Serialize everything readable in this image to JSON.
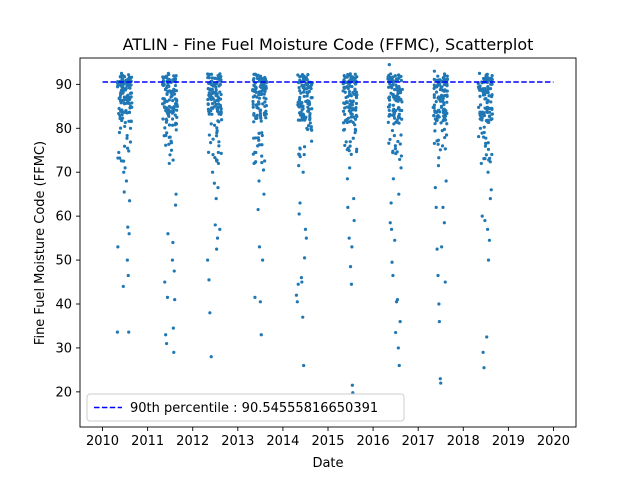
{
  "chart_data": {
    "type": "scatter",
    "title": "ATLIN - Fine Fuel Moisture Code (FFMC), Scatterplot",
    "xlabel": "Date",
    "ylabel": "Fine Fuel Moisture Code (FFMC)",
    "xlim": [
      2009.5,
      2020.5
    ],
    "ylim": [
      12,
      96
    ],
    "x_ticks": [
      "2010",
      "2011",
      "2012",
      "2013",
      "2014",
      "2015",
      "2016",
      "2017",
      "2018",
      "2019",
      "2020"
    ],
    "y_ticks": [
      "20",
      "30",
      "40",
      "50",
      "60",
      "70",
      "80",
      "90"
    ],
    "grid": false,
    "legend_position": "lower-left",
    "point_color": "#1f77b4",
    "reference_line": {
      "label": "90th percentile : 90.54555816650391",
      "value": 90.54555816650391,
      "color": "#0000ff",
      "style": "dashed"
    },
    "series": [
      {
        "seasons": [
          {
            "year": 2010,
            "points": [
              [
                2010.33,
                33.6
              ],
              [
                2010.34,
                53.0
              ],
              [
                2010.36,
                74.5
              ],
              [
                2010.38,
                73.2
              ],
              [
                2010.42,
                92.5
              ],
              [
                2010.45,
                88.0
              ],
              [
                2010.46,
                44.0
              ],
              [
                2010.48,
                65.5
              ],
              [
                2010.5,
                71.0
              ],
              [
                2010.52,
                89.0
              ],
              [
                2010.55,
                50.0
              ],
              [
                2010.56,
                57.5
              ],
              [
                2010.58,
                33.6
              ],
              [
                2010.6,
                63.5
              ],
              [
                2010.62,
                80.0
              ],
              [
                2010.47,
                70.0
              ],
              [
                2010.53,
                68.0
              ],
              [
                2010.4,
                84.0
              ],
              [
                2010.57,
                46.5
              ],
              [
                2010.59,
                56.0
              ]
            ]
          },
          {
            "year": 2011,
            "points": [
              [
                2011.38,
                45.0
              ],
              [
                2011.4,
                33.0
              ],
              [
                2011.42,
                31.0
              ],
              [
                2011.44,
                41.5
              ],
              [
                2011.46,
                92.5
              ],
              [
                2011.52,
                88.0
              ],
              [
                2011.55,
                50.0
              ],
              [
                2011.57,
                34.5
              ],
              [
                2011.58,
                29.0
              ],
              [
                2011.6,
                41.0
              ],
              [
                2011.62,
                62.5
              ],
              [
                2011.64,
                81.0
              ],
              [
                2011.5,
                78.0
              ],
              [
                2011.48,
                72.0
              ],
              [
                2011.56,
                54.0
              ],
              [
                2011.59,
                47.5
              ],
              [
                2011.63,
                65.0
              ],
              [
                2011.45,
                56.0
              ],
              [
                2011.53,
                75.0
              ],
              [
                2011.66,
                85.0
              ]
            ]
          },
          {
            "year": 2012,
            "points": [
              [
                2012.33,
                50.0
              ],
              [
                2012.36,
                45.5
              ],
              [
                2012.38,
                38.0
              ],
              [
                2012.41,
                28.0
              ],
              [
                2012.44,
                70.0
              ],
              [
                2012.47,
                88.0
              ],
              [
                2012.5,
                58.0
              ],
              [
                2012.53,
                52.5
              ],
              [
                2012.56,
                66.5
              ],
              [
                2012.58,
                76.0
              ],
              [
                2012.6,
                57.0
              ],
              [
                2012.62,
                91.0
              ],
              [
                2012.45,
                74.0
              ],
              [
                2012.52,
                64.0
              ],
              [
                2012.55,
                55.0
              ],
              [
                2012.4,
                84.0
              ],
              [
                2012.57,
                72.0
              ],
              [
                2012.48,
                67.5
              ]
            ]
          },
          {
            "year": 2013,
            "points": [
              [
                2013.36,
                72.0
              ],
              [
                2013.38,
                41.5
              ],
              [
                2013.42,
                92.0
              ],
              [
                2013.45,
                61.5
              ],
              [
                2013.48,
                53.0
              ],
              [
                2013.5,
                40.5
              ],
              [
                2013.52,
                33.0
              ],
              [
                2013.55,
                50.0
              ],
              [
                2013.57,
                70.5
              ],
              [
                2013.6,
                85.0
              ],
              [
                2013.44,
                76.0
              ],
              [
                2013.47,
                68.0
              ],
              [
                2013.53,
                79.0
              ],
              [
                2013.4,
                74.5
              ],
              [
                2013.58,
                65.0
              ]
            ]
          },
          {
            "year": 2014,
            "points": [
              [
                2014.3,
                42.0
              ],
              [
                2014.32,
                40.5
              ],
              [
                2014.34,
                44.5
              ],
              [
                2014.36,
                60.5
              ],
              [
                2014.38,
                63.0
              ],
              [
                2014.4,
                90.5
              ],
              [
                2014.42,
                45.0
              ],
              [
                2014.44,
                37.0
              ],
              [
                2014.46,
                26.0
              ],
              [
                2014.48,
                50.5
              ],
              [
                2014.5,
                57.0
              ],
              [
                2014.52,
                55.0
              ],
              [
                2014.55,
                88.0
              ],
              [
                2014.45,
                70.0
              ],
              [
                2014.35,
                71.5
              ],
              [
                2014.53,
                80.0
              ],
              [
                2014.41,
                46.0
              ],
              [
                2014.57,
                84.0
              ]
            ]
          },
          {
            "year": 2015,
            "points": [
              [
                2015.36,
                92.0
              ],
              [
                2015.4,
                87.0
              ],
              [
                2015.43,
                68.5
              ],
              [
                2015.45,
                75.5
              ],
              [
                2015.47,
                55.0
              ],
              [
                2015.5,
                48.5
              ],
              [
                2015.52,
                44.5
              ],
              [
                2015.54,
                21.5
              ],
              [
                2015.55,
                19.8
              ],
              [
                2015.57,
                64.0
              ],
              [
                2015.6,
                79.0
              ],
              [
                2015.44,
                62.0
              ],
              [
                2015.48,
                71.0
              ],
              [
                2015.58,
                59.0
              ],
              [
                2015.42,
                82.0
              ],
              [
                2015.53,
                53.0
              ]
            ]
          },
          {
            "year": 2016,
            "points": [
              [
                2016.36,
                94.5
              ],
              [
                2016.38,
                58.5
              ],
              [
                2016.4,
                63.0
              ],
              [
                2016.42,
                49.5
              ],
              [
                2016.44,
                46.5
              ],
              [
                2016.46,
                81.0
              ],
              [
                2016.48,
                54.5
              ],
              [
                2016.5,
                33.5
              ],
              [
                2016.52,
                40.5
              ],
              [
                2016.54,
                41.0
              ],
              [
                2016.56,
                30.0
              ],
              [
                2016.58,
                26.0
              ],
              [
                2016.6,
                36.0
              ],
              [
                2016.62,
                71.0
              ],
              [
                2016.64,
                86.0
              ],
              [
                2016.45,
                68.5
              ],
              [
                2016.55,
                77.0
              ],
              [
                2016.41,
                57.0
              ],
              [
                2016.57,
                65.0
              ]
            ]
          },
          {
            "year": 2017,
            "points": [
              [
                2017.36,
                93.0
              ],
              [
                2017.38,
                66.5
              ],
              [
                2017.4,
                62.0
              ],
              [
                2017.42,
                52.5
              ],
              [
                2017.44,
                46.5
              ],
              [
                2017.46,
                40.0
              ],
              [
                2017.47,
                36.0
              ],
              [
                2017.49,
                23.0
              ],
              [
                2017.5,
                22.0
              ],
              [
                2017.52,
                53.0
              ],
              [
                2017.55,
                62.0
              ],
              [
                2017.58,
                58.5
              ],
              [
                2017.6,
                45.0
              ],
              [
                2017.62,
                68.0
              ],
              [
                2017.64,
                91.0
              ],
              [
                2017.45,
                71.5
              ],
              [
                2017.54,
                76.0
              ],
              [
                2017.57,
                82.0
              ]
            ]
          },
          {
            "year": 2018,
            "points": [
              [
                2018.36,
                92.5
              ],
              [
                2018.38,
                80.0
              ],
              [
                2018.4,
                72.0
              ],
              [
                2018.42,
                60.0
              ],
              [
                2018.44,
                29.0
              ],
              [
                2018.46,
                25.5
              ],
              [
                2018.48,
                59.0
              ],
              [
                2018.5,
                76.5
              ],
              [
                2018.52,
                32.5
              ],
              [
                2018.54,
                57.0
              ],
              [
                2018.56,
                50.0
              ],
              [
                2018.58,
                54.5
              ],
              [
                2018.6,
                64.0
              ],
              [
                2018.62,
                66.0
              ],
              [
                2018.64,
                92.0
              ],
              [
                2018.55,
                70.0
              ],
              [
                2018.45,
                78.0
              ],
              [
                2018.61,
                86.0
              ],
              [
                2018.5,
                88.5
              ]
            ]
          }
        ]
      }
    ]
  }
}
